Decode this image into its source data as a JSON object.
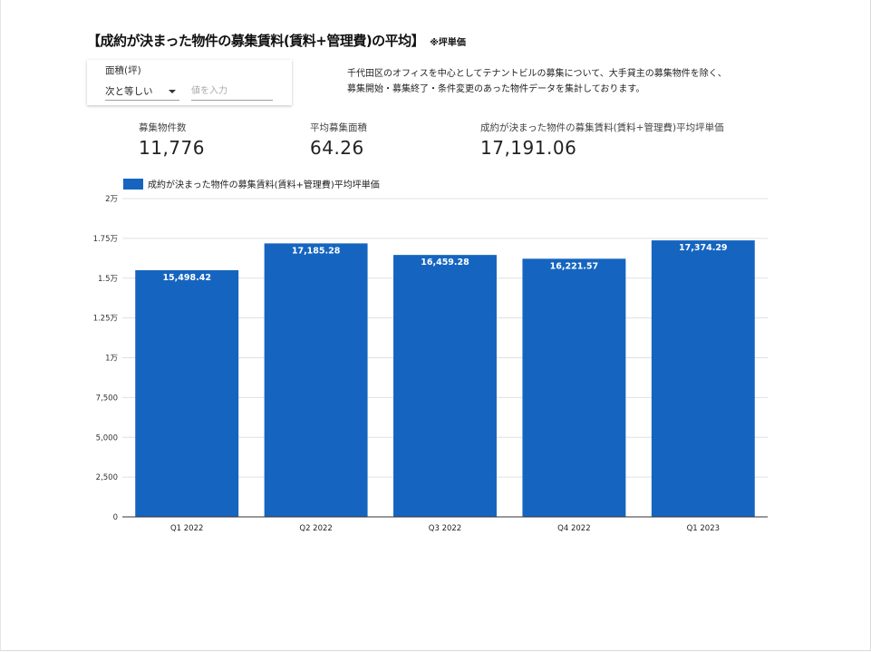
{
  "title": "【成約が決まった物件の募集賃料(賃料+管理費)の平均】",
  "title_note": "※坪単価",
  "filter": {
    "label": "面積(坪)",
    "operator": "次と等しい",
    "value_placeholder": "値を入力"
  },
  "description": {
    "line1": "千代田区のオフィスを中心としてテナントビルの募集について、大手貸主の募集物件を除く、",
    "line2": "募集開始・募集終了・条件変更のあった物件データを集計しております。"
  },
  "kpis": [
    {
      "label": "募集物件数",
      "value": "11,776"
    },
    {
      "label": "平均募集面積",
      "value": "64.26"
    },
    {
      "label": "成約が決まった物件の募集賃料(賃料+管理費)平均坪単価",
      "value": "17,191.06"
    }
  ],
  "colors": {
    "bar": "#1565c0",
    "grid": "#e0e0e0",
    "axis": "#333333"
  },
  "chart_data": {
    "type": "bar",
    "categories": [
      "Q1 2022",
      "Q2 2022",
      "Q3 2022",
      "Q4 2022",
      "Q1 2023"
    ],
    "series": [
      {
        "name": "成約が決まった物件の募集賃料(賃料+管理費)平均坪単価",
        "values": [
          15498.42,
          17185.28,
          16459.28,
          16221.57,
          17374.29
        ],
        "labels": [
          "15,498.42",
          "17,185.28",
          "16,459.28",
          "16,221.57",
          "17,374.29"
        ]
      }
    ],
    "ylim": [
      0,
      20000
    ],
    "yticks": [
      0,
      2500,
      5000,
      7500,
      10000,
      12500,
      15000,
      17500,
      20000
    ],
    "ytick_labels": [
      "0",
      "2,500",
      "5,000",
      "7,500",
      "1万",
      "1.25万",
      "1.5万",
      "1.75万",
      "2万"
    ],
    "grid": true,
    "legend_position": "top-left"
  }
}
